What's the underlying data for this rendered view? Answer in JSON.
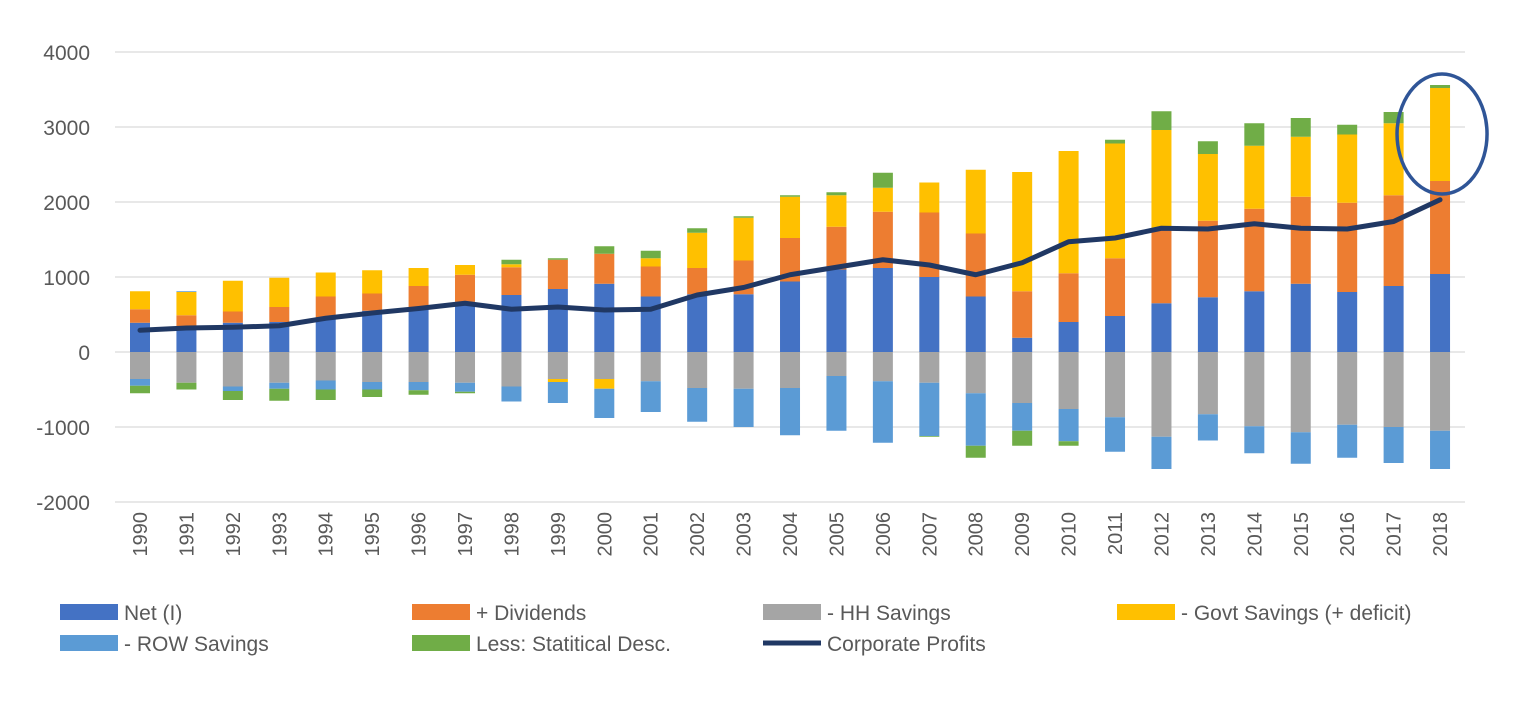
{
  "chart_data": {
    "type": "bar",
    "stacked": true,
    "title": "",
    "xlabel": "",
    "ylabel": "",
    "ylim": [
      -2000,
      4000
    ],
    "yticks": [
      -2000,
      -1000,
      0,
      1000,
      2000,
      3000,
      4000
    ],
    "grid": true,
    "legend_position": "bottom",
    "categories": [
      "1990",
      "1991",
      "1992",
      "1993",
      "1994",
      "1995",
      "1996",
      "1997",
      "1998",
      "1999",
      "2000",
      "2001",
      "2002",
      "2003",
      "2004",
      "2005",
      "2006",
      "2007",
      "2008",
      "2009",
      "2010",
      "2011",
      "2012",
      "2013",
      "2014",
      "2015",
      "2016",
      "2017",
      "2018"
    ],
    "series": [
      {
        "name": "Net (I)",
        "color": "#4472C4",
        "values": [
          390,
          330,
          390,
          400,
          460,
          550,
          600,
          670,
          760,
          840,
          910,
          740,
          770,
          770,
          940,
          1100,
          1120,
          1000,
          740,
          190,
          400,
          480,
          650,
          730,
          810,
          910,
          800,
          880,
          1040
        ]
      },
      {
        "name": "+ Dividends",
        "color": "#ED7D31",
        "values": [
          180,
          160,
          150,
          200,
          280,
          230,
          280,
          360,
          370,
          390,
          400,
          400,
          350,
          450,
          580,
          570,
          750,
          860,
          840,
          620,
          650,
          770,
          1000,
          1020,
          1100,
          1160,
          1190,
          1210,
          1240
        ]
      },
      {
        "name": "- HH Savings",
        "color": "#A5A5A5",
        "values": [
          -360,
          -410,
          -460,
          -410,
          -380,
          -400,
          -400,
          -410,
          -460,
          -360,
          -360,
          -390,
          -480,
          -490,
          -480,
          -320,
          -390,
          -410,
          -550,
          -680,
          -760,
          -870,
          -1130,
          -830,
          -990,
          -1070,
          -970,
          -1000,
          -1050
        ]
      },
      {
        "name": "- Govt Savings (+ deficit)",
        "color": "#FFC000",
        "values": [
          240,
          310,
          410,
          390,
          320,
          310,
          240,
          130,
          40,
          -40,
          -130,
          110,
          470,
          570,
          550,
          420,
          320,
          400,
          850,
          1590,
          1630,
          1530,
          1310,
          890,
          840,
          800,
          910,
          960,
          1240
        ]
      },
      {
        "name": "- ROW Savings",
        "color": "#5B9BD5",
        "values": [
          -90,
          10,
          -60,
          -80,
          -120,
          -100,
          -110,
          -120,
          -200,
          -280,
          -390,
          -410,
          -450,
          -510,
          -630,
          -730,
          -820,
          -710,
          -700,
          -370,
          -430,
          -460,
          -430,
          -350,
          -360,
          -420,
          -440,
          -480,
          -510
        ]
      },
      {
        "name": "Less: Statitical Desc.",
        "color": "#70AD47",
        "values": [
          -100,
          -90,
          -120,
          -160,
          -140,
          -100,
          -60,
          -20,
          60,
          20,
          100,
          100,
          60,
          20,
          20,
          40,
          200,
          -10,
          -160,
          -200,
          -60,
          50,
          250,
          170,
          300,
          250,
          130,
          150,
          40
        ]
      },
      {
        "name": "Corporate Profits",
        "type": "line",
        "color": "#203864",
        "values": [
          290,
          320,
          330,
          350,
          450,
          520,
          580,
          650,
          570,
          600,
          560,
          570,
          760,
          860,
          1030,
          1130,
          1230,
          1160,
          1030,
          1190,
          1470,
          1520,
          1650,
          1640,
          1710,
          1650,
          1640,
          1740,
          2030
        ]
      }
    ],
    "annotations": [
      {
        "type": "ellipse",
        "target": "2018",
        "color": "#2F5597"
      }
    ]
  }
}
